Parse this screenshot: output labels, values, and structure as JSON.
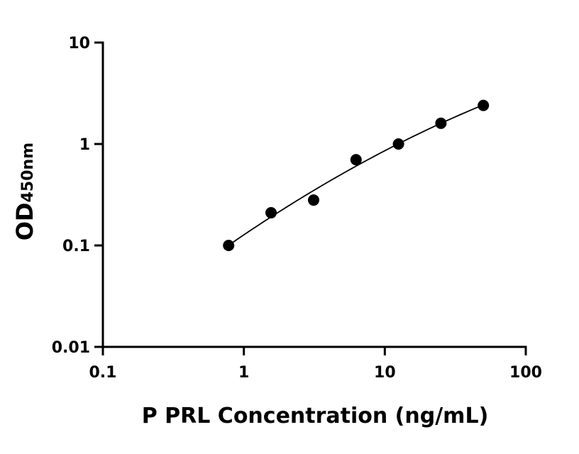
{
  "chart_data": {
    "type": "scatter",
    "xlabel": "P PRL Concentration (ng/mL)",
    "ylabel_main": "OD",
    "ylabel_sub": "450nm",
    "x_scale": "log",
    "y_scale": "log",
    "xlim": [
      0.1,
      100
    ],
    "ylim": [
      0.01,
      10
    ],
    "x_ticks": [
      {
        "value": 0.1,
        "label": "0.1"
      },
      {
        "value": 1,
        "label": "1"
      },
      {
        "value": 10,
        "label": "10"
      },
      {
        "value": 100,
        "label": "100"
      }
    ],
    "y_ticks": [
      {
        "value": 0.01,
        "label": "0.01"
      },
      {
        "value": 0.1,
        "label": "0.1"
      },
      {
        "value": 1,
        "label": "1"
      },
      {
        "value": 10,
        "label": "10"
      }
    ],
    "grid": false,
    "legend": "none",
    "series": [
      {
        "x": [
          0.78,
          1.56,
          3.125,
          6.25,
          12.5,
          25,
          50
        ],
        "y": [
          0.1,
          0.21,
          0.28,
          0.7,
          1.0,
          1.6,
          2.4
        ],
        "marker": "circle",
        "color": "#000000",
        "fit_curve": true
      }
    ]
  }
}
